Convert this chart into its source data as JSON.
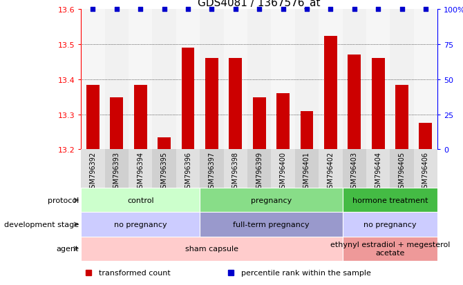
{
  "title": "GDS4081 / 1367576_at",
  "samples": [
    "GSM796392",
    "GSM796393",
    "GSM796394",
    "GSM796395",
    "GSM796396",
    "GSM796397",
    "GSM796398",
    "GSM796399",
    "GSM796400",
    "GSM796401",
    "GSM796402",
    "GSM796403",
    "GSM796404",
    "GSM796405",
    "GSM796406"
  ],
  "bar_values": [
    13.385,
    13.348,
    13.385,
    13.235,
    13.49,
    13.46,
    13.46,
    13.348,
    13.36,
    13.31,
    13.525,
    13.47,
    13.46,
    13.385,
    13.275
  ],
  "percentile_values": [
    100,
    100,
    100,
    100,
    100,
    100,
    100,
    100,
    100,
    100,
    100,
    100,
    100,
    100,
    100
  ],
  "bar_color": "#cc0000",
  "percentile_color": "#0000cc",
  "ylim_left": [
    13.2,
    13.6
  ],
  "ylim_right": [
    0,
    100
  ],
  "yticks_left": [
    13.2,
    13.3,
    13.4,
    13.5,
    13.6
  ],
  "yticks_right": [
    0,
    25,
    50,
    75,
    100
  ],
  "ytick_labels_right": [
    "0",
    "25",
    "50",
    "75",
    "100%"
  ],
  "grid_values": [
    13.3,
    13.4,
    13.5
  ],
  "protocol_groups": [
    {
      "label": "control",
      "start": 0,
      "end": 4,
      "color": "#ccffcc"
    },
    {
      "label": "pregnancy",
      "start": 5,
      "end": 10,
      "color": "#88dd88"
    },
    {
      "label": "hormone treatment",
      "start": 11,
      "end": 14,
      "color": "#44bb44"
    }
  ],
  "dev_stage_groups": [
    {
      "label": "no pregnancy",
      "start": 0,
      "end": 4,
      "color": "#ccccff"
    },
    {
      "label": "full-term pregnancy",
      "start": 5,
      "end": 10,
      "color": "#9999cc"
    },
    {
      "label": "no pregnancy",
      "start": 11,
      "end": 14,
      "color": "#ccccff"
    }
  ],
  "agent_groups": [
    {
      "label": "sham capsule",
      "start": 0,
      "end": 10,
      "color": "#ffcccc"
    },
    {
      "label": "ethynyl estradiol + megesterol\nacetate",
      "start": 11,
      "end": 14,
      "color": "#ee9999"
    }
  ],
  "row_labels_left": [
    "protocol",
    "development stage",
    "agent"
  ],
  "legend_items": [
    {
      "label": "transformed count",
      "color": "#cc0000"
    },
    {
      "label": "percentile rank within the sample",
      "color": "#0000cc"
    }
  ],
  "bg_color": "#f0f0f0"
}
